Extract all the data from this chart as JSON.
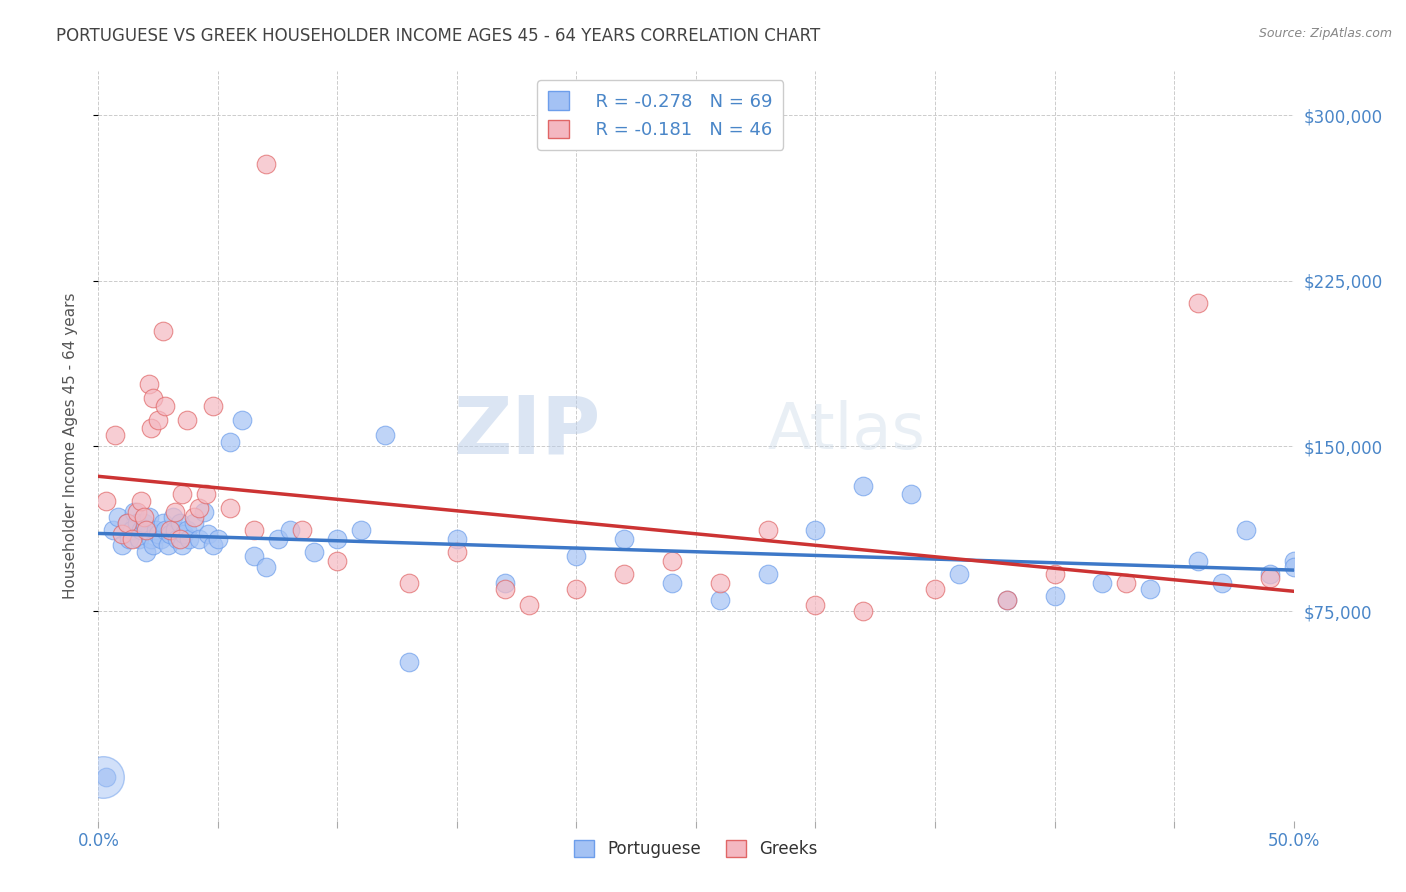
{
  "title": "PORTUGUESE VS GREEK HOUSEHOLDER INCOME AGES 45 - 64 YEARS CORRELATION CHART",
  "source": "Source: ZipAtlas.com",
  "ylabel": "Householder Income Ages 45 - 64 years",
  "yticks": [
    75000,
    150000,
    225000,
    300000
  ],
  "ytick_labels": [
    "$75,000",
    "$150,000",
    "$225,000",
    "$300,000"
  ],
  "xmin": 0.0,
  "xmax": 0.5,
  "ymin": -20000,
  "ymax": 320000,
  "watermark_zip": "ZIP",
  "watermark_atlas": "Atlas",
  "legend_r1": "R = -0.278",
  "legend_n1": "N = 69",
  "legend_r2": "R = -0.181",
  "legend_n2": "N = 46",
  "blue_color": "#a4c2f4",
  "pink_color": "#f4b8c1",
  "blue_edge_color": "#6d9eeb",
  "pink_edge_color": "#e06666",
  "blue_line_color": "#3d78c8",
  "pink_line_color": "#cc3333",
  "title_color": "#434343",
  "axis_label_color": "#4a86c8",
  "portuguese_x": [
    0.003,
    0.006,
    0.008,
    0.01,
    0.012,
    0.013,
    0.014,
    0.015,
    0.016,
    0.017,
    0.018,
    0.019,
    0.02,
    0.021,
    0.022,
    0.023,
    0.024,
    0.025,
    0.026,
    0.027,
    0.028,
    0.029,
    0.03,
    0.031,
    0.032,
    0.033,
    0.034,
    0.035,
    0.036,
    0.037,
    0.038,
    0.04,
    0.042,
    0.044,
    0.046,
    0.048,
    0.05,
    0.055,
    0.06,
    0.065,
    0.07,
    0.075,
    0.08,
    0.09,
    0.1,
    0.11,
    0.12,
    0.13,
    0.15,
    0.17,
    0.2,
    0.22,
    0.24,
    0.26,
    0.28,
    0.3,
    0.32,
    0.34,
    0.36,
    0.38,
    0.4,
    0.42,
    0.44,
    0.46,
    0.47,
    0.48,
    0.49,
    0.5,
    0.5
  ],
  "portuguese_y": [
    0,
    112000,
    118000,
    105000,
    115000,
    108000,
    112000,
    120000,
    115000,
    108000,
    112000,
    115000,
    102000,
    118000,
    108000,
    105000,
    112000,
    110000,
    108000,
    115000,
    112000,
    105000,
    110000,
    118000,
    112000,
    108000,
    115000,
    105000,
    110000,
    112000,
    108000,
    115000,
    108000,
    120000,
    110000,
    105000,
    108000,
    152000,
    162000,
    100000,
    95000,
    108000,
    112000,
    102000,
    108000,
    112000,
    155000,
    52000,
    108000,
    88000,
    100000,
    108000,
    88000,
    80000,
    92000,
    112000,
    132000,
    128000,
    92000,
    80000,
    82000,
    88000,
    85000,
    98000,
    88000,
    112000,
    92000,
    98000,
    95000
  ],
  "greek_x": [
    0.003,
    0.007,
    0.01,
    0.012,
    0.014,
    0.016,
    0.018,
    0.019,
    0.02,
    0.021,
    0.022,
    0.023,
    0.025,
    0.027,
    0.028,
    0.03,
    0.032,
    0.034,
    0.035,
    0.037,
    0.04,
    0.042,
    0.045,
    0.048,
    0.055,
    0.065,
    0.07,
    0.085,
    0.1,
    0.13,
    0.15,
    0.17,
    0.18,
    0.2,
    0.22,
    0.24,
    0.26,
    0.28,
    0.3,
    0.32,
    0.35,
    0.38,
    0.4,
    0.43,
    0.46,
    0.49
  ],
  "greek_y": [
    125000,
    155000,
    110000,
    115000,
    108000,
    120000,
    125000,
    118000,
    112000,
    178000,
    158000,
    172000,
    162000,
    202000,
    168000,
    112000,
    120000,
    108000,
    128000,
    162000,
    118000,
    122000,
    128000,
    168000,
    122000,
    112000,
    278000,
    112000,
    98000,
    88000,
    102000,
    85000,
    78000,
    85000,
    92000,
    98000,
    88000,
    112000,
    78000,
    75000,
    85000,
    80000,
    92000,
    88000,
    215000,
    90000
  ]
}
